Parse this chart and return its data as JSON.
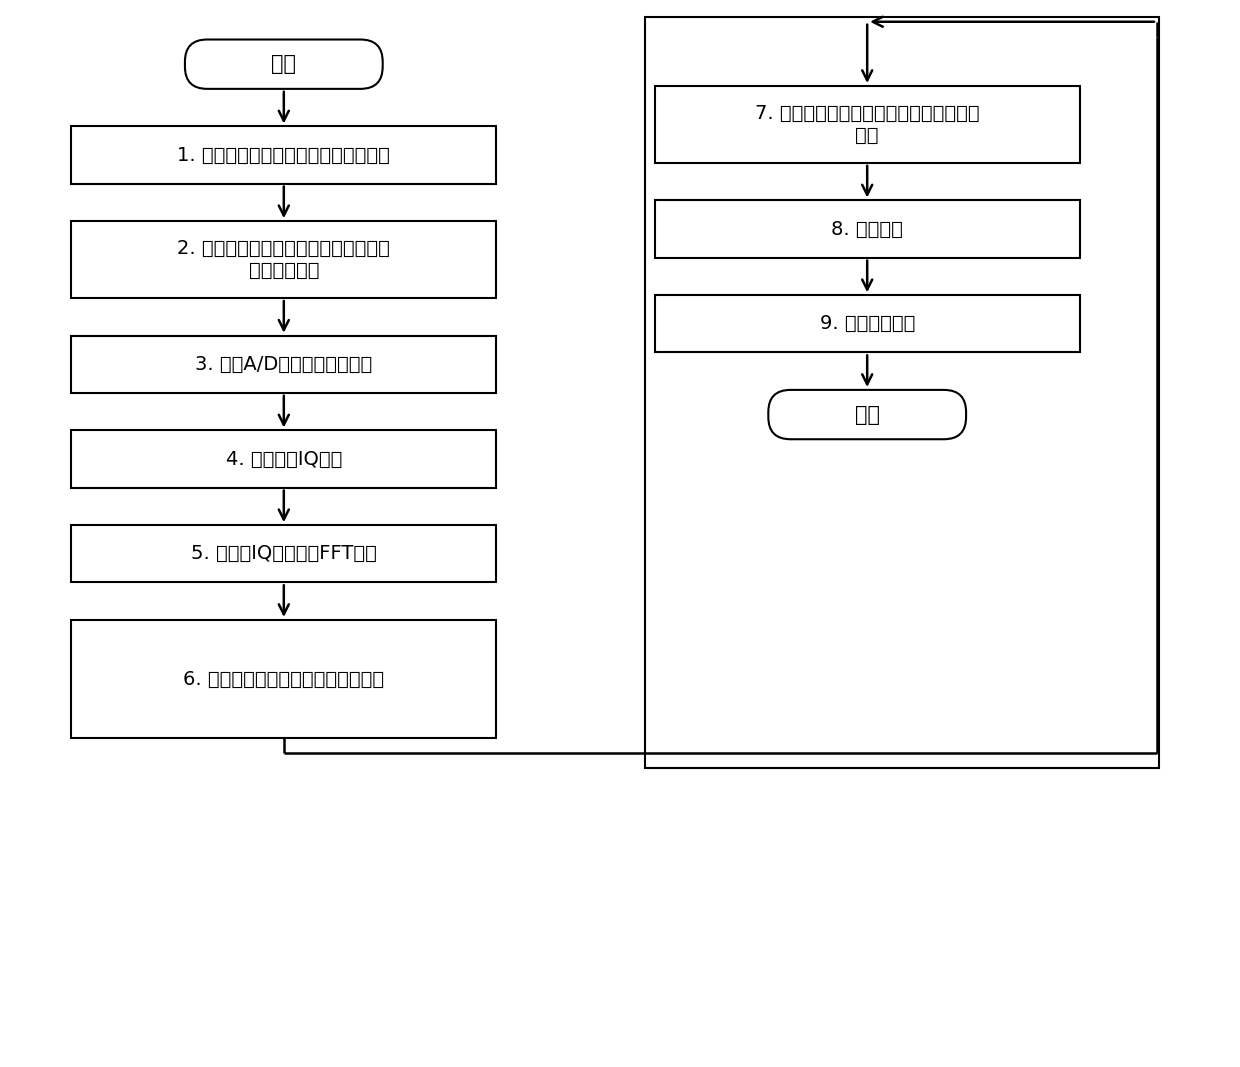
{
  "bg_color": "#ffffff",
  "box_color": "#ffffff",
  "box_edge": "#000000",
  "text_color": "#000000",
  "arrow_color": "#000000",
  "font_size": 14,
  "start_label": "开始",
  "end_label": "结束",
  "left_boxes": [
    {
      "label": "1. 确定模拟射频的中心频率和接收带宽",
      "multiline": false
    },
    {
      "label": "2. 设置射频中心频率和接收带宽，获得\n模拟射频信号",
      "multiline": true
    },
    {
      "label": "3. 确定A/D采样器的采样频率",
      "multiline": false
    },
    {
      "label": "4. 获得数字IQ数据",
      "multiline": false
    },
    {
      "label": "5. 对采样IQ数据进行FFT计算",
      "multiline": false
    },
    {
      "label": "6. 取出每条物理信道的频域带宽数据",
      "multiline": false
    }
  ],
  "right_boxes": [
    {
      "label": "7. 从频域确定物理信道上是否存在有效数\n据帧",
      "multiline": true
    },
    {
      "label": "8. 解析帧头",
      "multiline": false
    },
    {
      "label": "9. 解析帧数据体",
      "multiline": false
    }
  ]
}
